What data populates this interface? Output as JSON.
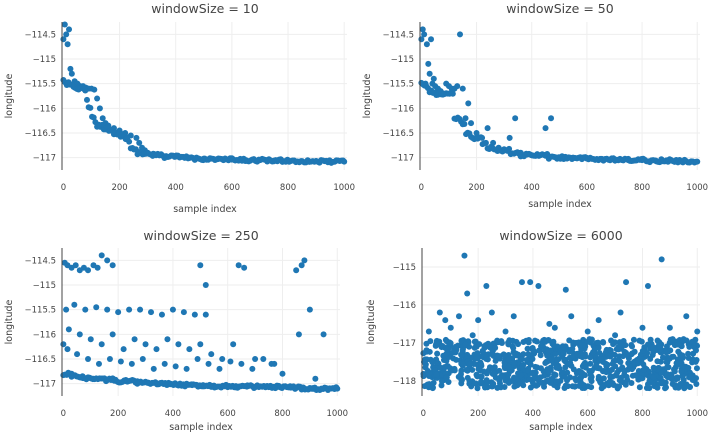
{
  "chart_data": [
    {
      "type": "scatter",
      "title": "windowSize = 10",
      "xlabel": "sample index",
      "ylabel": "longitude",
      "xlim": [
        -5,
        1010
      ],
      "ylim": [
        -117.25,
        -114.25
      ],
      "xticks": [
        0,
        200,
        400,
        600,
        800,
        1000
      ],
      "xtick_labels": [
        "0",
        "200",
        "400",
        "600",
        "800",
        "1000"
      ],
      "yticks": [
        -114.5,
        -115,
        -115.5,
        -116,
        -116.5,
        -117
      ],
      "ytick_labels": [
        "−114.5",
        "−115",
        "−115.5",
        "−116",
        "−116.5",
        "−117"
      ],
      "grid": true,
      "marker_color": "#1f77b4",
      "series": [
        {
          "x": [
            0,
            5,
            10,
            15,
            20,
            25,
            30,
            40,
            50,
            60,
            70,
            80,
            90,
            100,
            110,
            120,
            130,
            140,
            150,
            160,
            180,
            200,
            220,
            240,
            260,
            270,
            280,
            290,
            300,
            320,
            350,
            400,
            450,
            500,
            550,
            600,
            650,
            700,
            750,
            800,
            850,
            900,
            950,
            1000
          ],
          "y": [
            -114.6,
            -114.3,
            -114.5,
            -114.7,
            -114.4,
            -115.2,
            -115.3,
            -115.45,
            -115.5,
            -115.55,
            -115.55,
            -115.58,
            -115.6,
            -115.6,
            -115.62,
            -115.8,
            -116.0,
            -116.2,
            -116.3,
            -116.35,
            -116.4,
            -116.45,
            -116.5,
            -116.55,
            -116.6,
            -116.7,
            -116.8,
            -116.85,
            -116.9,
            -116.92,
            -116.95,
            -116.98,
            -117.0,
            -117.02,
            -117.03,
            -117.04,
            -117.05,
            -117.05,
            -117.06,
            -117.06,
            -117.07,
            -117.07,
            -117.08,
            -117.08
          ]
        }
      ]
    },
    {
      "type": "scatter",
      "title": "windowSize = 50",
      "xlabel": "sample index",
      "ylabel": "longitude",
      "xlim": [
        -5,
        1010
      ],
      "ylim": [
        -117.25,
        -114.25
      ],
      "xticks": [
        0,
        200,
        400,
        600,
        800,
        1000
      ],
      "xtick_labels": [
        "0",
        "200",
        "400",
        "600",
        "800",
        "1000"
      ],
      "yticks": [
        -114.5,
        -115,
        -115.5,
        -116,
        -116.5,
        -117
      ],
      "ytick_labels": [
        "−114.5",
        "−115",
        "−115.5",
        "−116",
        "−116.5",
        "−117"
      ],
      "grid": true,
      "marker_color": "#1f77b4",
      "series": [
        {
          "x": [
            0,
            5,
            10,
            15,
            20,
            25,
            30,
            35,
            40,
            45,
            50,
            60,
            70,
            80,
            90,
            100,
            110,
            120,
            130,
            140,
            150,
            160,
            170,
            180,
            200,
            220,
            240,
            260,
            280,
            300,
            320,
            340,
            360,
            380,
            400,
            420,
            450,
            470,
            500,
            550,
            600,
            650,
            700,
            750,
            800,
            850,
            900,
            950,
            1000
          ],
          "y": [
            -114.6,
            -114.4,
            -114.5,
            -115.5,
            -114.7,
            -115.1,
            -115.3,
            -114.6,
            -115.5,
            -115.4,
            -115.55,
            -115.6,
            -115.65,
            -115.7,
            -115.5,
            -115.55,
            -115.6,
            -115.6,
            -115.55,
            -114.5,
            -115.6,
            -116.2,
            -115.9,
            -116.3,
            -116.5,
            -116.6,
            -116.4,
            -116.7,
            -116.8,
            -116.85,
            -116.6,
            -116.2,
            -116.9,
            -116.92,
            -116.95,
            -116.95,
            -116.4,
            -116.2,
            -117.0,
            -117.0,
            -117.02,
            -117.03,
            -117.04,
            -117.05,
            -117.05,
            -117.06,
            -117.06,
            -117.07,
            -117.08
          ]
        }
      ]
    },
    {
      "type": "scatter",
      "title": "windowSize = 250",
      "xlabel": "sample index",
      "ylabel": "longitude",
      "xlim": [
        -5,
        1010
      ],
      "ylim": [
        -117.25,
        -114.25
      ],
      "xticks": [
        0,
        200,
        400,
        600,
        800,
        1000
      ],
      "xtick_labels": [
        "0",
        "200",
        "400",
        "600",
        "800",
        "1000"
      ],
      "yticks": [
        -114.5,
        -115,
        -115.5,
        -116,
        -116.5,
        -117
      ],
      "ytick_labels": [
        "−114.5",
        "−115",
        "−115.5",
        "−116",
        "−116.5",
        "−117"
      ],
      "grid": true,
      "marker_color": "#1f77b4",
      "series": [
        {
          "x": [
            5,
            15,
            30,
            45,
            60,
            75,
            90,
            110,
            125,
            140,
            160,
            180,
            10,
            40,
            80,
            120,
            160,
            200,
            240,
            280,
            320,
            360,
            400,
            440,
            480,
            520,
            20,
            60,
            100,
            140,
            180,
            220,
            260,
            300,
            340,
            380,
            420,
            460,
            500,
            540,
            580,
            620,
            15,
            50,
            90,
            130,
            170,
            210,
            250,
            290,
            330,
            370,
            410,
            450,
            490,
            530,
            570,
            610,
            650,
            690,
            730,
            770,
            0,
            30,
            70,
            110,
            150,
            190,
            230,
            270,
            310,
            350,
            390,
            430,
            470,
            510,
            550,
            590,
            630,
            670,
            710,
            750,
            790,
            830,
            870,
            910,
            950,
            1000,
            500,
            520,
            640,
            660,
            850,
            870,
            880,
            900,
            950,
            700,
            760,
            800,
            860,
            920
          ],
          "y": [
            -114.55,
            -114.6,
            -114.65,
            -114.6,
            -114.7,
            -114.65,
            -114.7,
            -114.6,
            -114.65,
            -114.4,
            -114.5,
            -114.6,
            -115.5,
            -115.4,
            -115.5,
            -115.45,
            -115.5,
            -115.55,
            -115.5,
            -115.5,
            -115.55,
            -115.6,
            -115.5,
            -115.55,
            -115.6,
            -115.6,
            -115.9,
            -116.0,
            -116.1,
            -116.2,
            -116.0,
            -116.3,
            -116.1,
            -116.2,
            -116.3,
            -116.1,
            -116.2,
            -116.3,
            -116.2,
            -116.4,
            -116.5,
            -116.2,
            -116.3,
            -116.4,
            -116.5,
            -116.6,
            -116.5,
            -116.55,
            -116.6,
            -116.5,
            -116.7,
            -116.6,
            -116.65,
            -116.7,
            -116.5,
            -116.6,
            -116.7,
            -116.55,
            -116.6,
            -116.7,
            -116.5,
            -116.6,
            -116.2,
            -116.8,
            -116.85,
            -116.9,
            -116.9,
            -116.92,
            -116.95,
            -116.95,
            -116.98,
            -117.0,
            -117.0,
            -117.02,
            -117.03,
            -117.03,
            -117.04,
            -117.05,
            -117.05,
            -117.06,
            -117.06,
            -117.07,
            -117.07,
            -117.08,
            -117.08,
            -117.09,
            -117.1,
            -117.1,
            -114.6,
            -115.0,
            -114.6,
            -114.65,
            -114.7,
            -114.6,
            -114.5,
            -115.5,
            -116.0,
            -116.5,
            -116.6,
            -116.8,
            -116.0,
            -116.9
          ]
        }
      ]
    },
    {
      "type": "scatter",
      "title": "windowSize = 6000",
      "xlabel": "sample index",
      "ylabel": "longitude",
      "xlim": [
        -5,
        1010
      ],
      "ylim": [
        -118.4,
        -114.5
      ],
      "xticks": [
        0,
        200,
        400,
        600,
        800,
        1000
      ],
      "xtick_labels": [
        "0",
        "200",
        "400",
        "600",
        "800",
        "1000"
      ],
      "yticks": [
        -115,
        -116,
        -117,
        -118
      ],
      "ytick_labels": [
        "−115",
        "−116",
        "−117",
        "−118"
      ],
      "grid": true,
      "marker_color": "#1f77b4",
      "series": [
        {
          "x": [
            150,
            870,
            360,
            390,
            420,
            740,
            160,
            230,
            520,
            820,
            60,
            80,
            130,
            200,
            250,
            330,
            460,
            540,
            640,
            720,
            900,
            960,
            20,
            100,
            180,
            300,
            480,
            600,
            700,
            800,
            950,
            1000
          ],
          "y": [
            -114.7,
            -114.8,
            -115.4,
            -115.4,
            -115.5,
            -115.4,
            -115.7,
            -115.5,
            -115.6,
            -115.5,
            -116.2,
            -116.4,
            -116.3,
            -116.4,
            -116.2,
            -116.3,
            -116.5,
            -116.3,
            -116.4,
            -116.2,
            -116.6,
            -116.3,
            -116.7,
            -116.6,
            -116.8,
            -116.7,
            -116.6,
            -116.7,
            -116.8,
            -116.6,
            -116.9,
            -116.7
          ]
        }
      ],
      "band": {
        "x_range": [
          0,
          1000
        ],
        "y_range": [
          -118.2,
          -116.9
        ]
      }
    }
  ]
}
